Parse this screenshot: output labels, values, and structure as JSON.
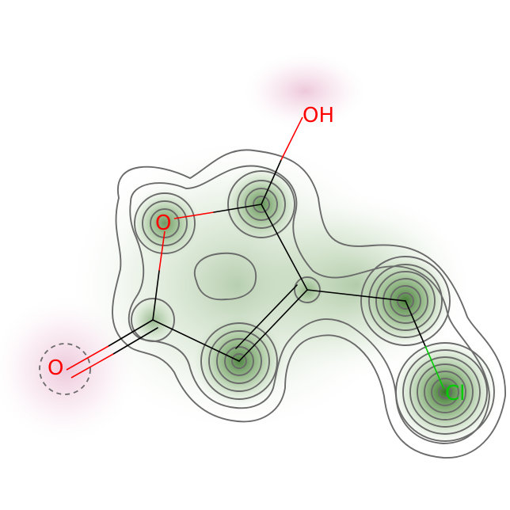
{
  "molecule": {
    "atoms": [
      {
        "id": "ring-o",
        "label": "O",
        "color": "#ff0000"
      },
      {
        "id": "hydroxyl-o",
        "label": "OH",
        "color": "#ff0000"
      },
      {
        "id": "carbonyl-o",
        "label": "O",
        "color": "#ff0000"
      },
      {
        "id": "chlorine",
        "label": "Cl",
        "color": "#00cc00"
      }
    ]
  },
  "colors": {
    "bond": "#000000",
    "oxygen": "#ff0000",
    "chlorine": "#00cc00",
    "positive_density": "#2e6b1e",
    "negative_density": "#c0397a",
    "contour": "#6b6b6b"
  }
}
